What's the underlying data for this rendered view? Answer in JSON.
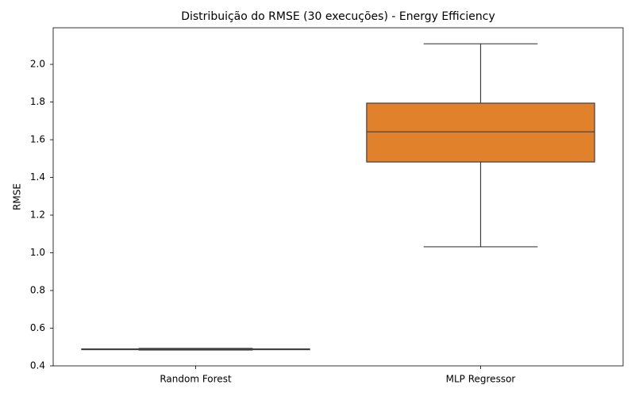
{
  "chart_data": {
    "type": "box",
    "title": "Distribuição do RMSE (30 execuções) - Energy Efficiency",
    "ylabel": "RMSE",
    "categories": [
      "Random Forest",
      "MLP Regressor"
    ],
    "boxes": [
      {
        "whislo": 0.484,
        "q1": 0.486,
        "med": 0.488,
        "q3": 0.49,
        "whishi": 0.493,
        "color": "#3274a1"
      },
      {
        "whislo": 1.032,
        "q1": 1.482,
        "med": 1.642,
        "q3": 1.794,
        "whishi": 2.109,
        "color": "#e1812c"
      }
    ],
    "ylim": [
      0.4,
      2.194
    ],
    "yticks": [
      0.4,
      0.6,
      0.8,
      {
        "value": 1,
        "label": "1.0"
      },
      1.2,
      1.4,
      1.6,
      1.8,
      {
        "value": 2,
        "label": "2.0"
      }
    ],
    "grid": false
  }
}
